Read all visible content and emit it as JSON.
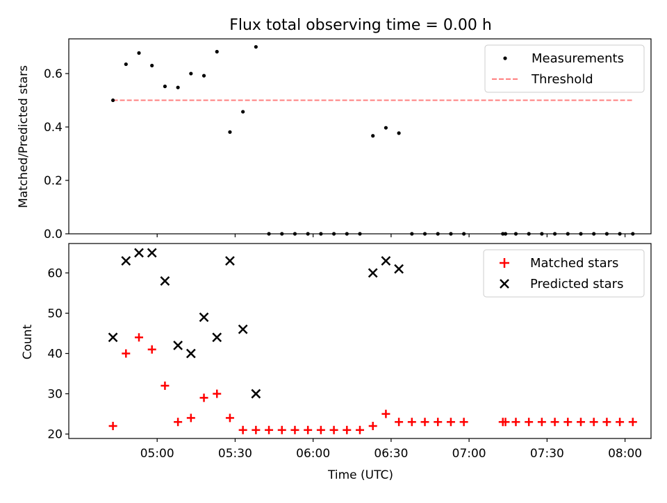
{
  "chart_data": [
    {
      "type": "scatter",
      "title": "Flux total observing time = 0.00 h",
      "xlabel": "",
      "ylabel": "Matched/Predicted stars",
      "ylim": [
        0,
        0.73
      ],
      "yticks": [
        0.0,
        0.2,
        0.4,
        0.6
      ],
      "ytick_labels": [
        "0.0",
        "0.2",
        "0.4",
        "0.6"
      ],
      "xticks": [
        "05:00",
        "05:30",
        "06:00",
        "06:30",
        "07:00",
        "07:30",
        "08:00"
      ],
      "xtick_labels_visible": false,
      "legend": {
        "position": "top-right",
        "entries": [
          "Measurements",
          "Threshold"
        ]
      },
      "series": [
        {
          "name": "Measurements",
          "marker": "dot",
          "color": "#000000",
          "x": [
            "04:43",
            "04:48",
            "04:53",
            "04:58",
            "05:03",
            "05:08",
            "05:13",
            "05:18",
            "05:23",
            "05:28",
            "05:33",
            "05:38",
            "05:43",
            "05:48",
            "05:53",
            "05:58",
            "06:03",
            "06:08",
            "06:13",
            "06:18",
            "06:23",
            "06:28",
            "06:33",
            "06:38",
            "06:43",
            "06:48",
            "06:53",
            "06:58",
            "07:13",
            "07:14",
            "07:18",
            "07:23",
            "07:28",
            "07:33",
            "07:38",
            "07:43",
            "07:48",
            "07:53",
            "07:58",
            "08:03"
          ],
          "y": [
            0.5,
            0.635,
            0.677,
            0.63,
            0.552,
            0.548,
            0.6,
            0.592,
            0.682,
            0.381,
            0.457,
            0.7,
            0,
            0,
            0,
            0,
            0,
            0,
            0,
            0,
            0.367,
            0.397,
            0.377,
            0,
            0,
            0,
            0,
            0,
            0,
            0,
            0,
            0,
            0,
            0,
            0,
            0,
            0,
            0,
            0,
            0
          ]
        },
        {
          "name": "Threshold",
          "style": "dashed",
          "color": "#ff7f7f",
          "x": [
            "04:43",
            "08:03"
          ],
          "y": [
            0.5,
            0.5
          ]
        }
      ]
    },
    {
      "type": "scatter",
      "title": "",
      "xlabel": "Time (UTC)",
      "ylabel": "Count",
      "ylim": [
        18.9,
        67.3
      ],
      "yticks": [
        20,
        30,
        40,
        50,
        60
      ],
      "ytick_labels": [
        "20",
        "30",
        "40",
        "50",
        "60"
      ],
      "xticks": [
        "05:00",
        "05:30",
        "06:00",
        "06:30",
        "07:00",
        "07:30",
        "08:00"
      ],
      "legend": {
        "position": "top-right",
        "entries": [
          "Matched stars",
          "Predicted stars"
        ]
      },
      "series": [
        {
          "name": "Matched stars",
          "marker": "plus",
          "color": "#ff0000",
          "x": [
            "04:43",
            "04:48",
            "04:53",
            "04:58",
            "05:03",
            "05:08",
            "05:13",
            "05:18",
            "05:23",
            "05:28",
            "05:33",
            "05:38",
            "05:43",
            "05:48",
            "05:53",
            "05:58",
            "06:03",
            "06:08",
            "06:13",
            "06:18",
            "06:23",
            "06:28",
            "06:33",
            "06:38",
            "06:43",
            "06:48",
            "06:53",
            "06:58",
            "07:13",
            "07:14",
            "07:18",
            "07:23",
            "07:28",
            "07:33",
            "07:38",
            "07:43",
            "07:48",
            "07:53",
            "07:58",
            "08:03"
          ],
          "y": [
            22,
            40,
            44,
            41,
            32,
            23,
            24,
            29,
            30,
            24,
            21,
            21,
            21,
            21,
            21,
            21,
            21,
            21,
            21,
            21,
            22,
            25,
            23,
            23,
            23,
            23,
            23,
            23,
            23,
            23,
            23,
            23,
            23,
            23,
            23,
            23,
            23,
            23,
            23,
            23
          ]
        },
        {
          "name": "Predicted stars",
          "marker": "x",
          "color": "#000000",
          "x": [
            "04:43",
            "04:48",
            "04:53",
            "04:58",
            "05:03",
            "05:08",
            "05:13",
            "05:18",
            "05:23",
            "05:28",
            "05:33",
            "05:38",
            "06:23",
            "06:28",
            "06:33"
          ],
          "y": [
            44,
            63,
            65,
            65,
            58,
            42,
            40,
            49,
            44,
            63,
            46,
            30,
            60,
            63,
            61
          ]
        }
      ]
    }
  ]
}
